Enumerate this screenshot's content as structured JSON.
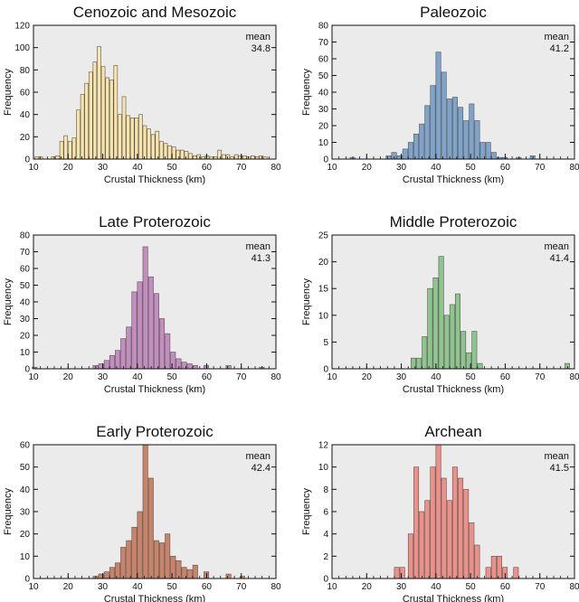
{
  "chart_data": [
    {
      "type": "bar",
      "title": "Cenozoic and Mesozoic",
      "xlabel": "Crustal Thickness (km)",
      "ylabel": "Frequency",
      "xlim": [
        10,
        80
      ],
      "ylim": [
        0,
        120
      ],
      "xticks": [
        10,
        20,
        30,
        40,
        50,
        60,
        70,
        80
      ],
      "yticks": [
        0,
        20,
        40,
        60,
        80,
        100,
        120
      ],
      "bin_width": 1.2,
      "annotation": {
        "label": "mean",
        "value": "34.8"
      },
      "color": "#f8e3a8",
      "x": [
        11,
        12.2,
        13.4,
        14.6,
        15.8,
        17,
        18.2,
        19.4,
        20.6,
        21.8,
        23,
        24.2,
        25.4,
        26.6,
        27.8,
        29,
        30.2,
        31.4,
        32.6,
        33.8,
        35,
        36.2,
        37.4,
        38.6,
        39.8,
        41,
        42.2,
        43.4,
        44.6,
        45.8,
        47,
        48.2,
        49.4,
        50.6,
        51.8,
        53,
        54.2,
        55.4,
        56.6,
        57.8,
        59,
        60.2,
        61.4,
        62.6,
        63.8,
        65,
        66.2,
        67.4,
        68.6,
        69.8,
        71,
        72.2,
        73.4,
        74.6,
        75.8,
        77,
        78.2
      ],
      "values": [
        2,
        2,
        0,
        0,
        2,
        3,
        16,
        21,
        16,
        19,
        44,
        58,
        68,
        78,
        87,
        101,
        83,
        73,
        71,
        84,
        40,
        56,
        39,
        37,
        37,
        40,
        30,
        27,
        22,
        25,
        16,
        14,
        12,
        11,
        8,
        8,
        7,
        5,
        3,
        4,
        2,
        3,
        2,
        2,
        8,
        4,
        4,
        2,
        4,
        3,
        3,
        2,
        3,
        2,
        3,
        2,
        0
      ]
    },
    {
      "type": "bar",
      "title": "Paleozoic",
      "xlabel": "Crustal Thickness (km)",
      "ylabel": "Frequency",
      "xlim": [
        10,
        80
      ],
      "ylim": [
        0,
        80
      ],
      "xticks": [
        10,
        20,
        30,
        40,
        50,
        60,
        70,
        80
      ],
      "yticks": [
        0,
        10,
        20,
        30,
        40,
        50,
        60,
        70,
        80
      ],
      "bin_width": 1.6,
      "annotation": {
        "label": "mean",
        "value": "41.2"
      },
      "color": "#7fa4cc",
      "x": [
        16,
        26.4,
        28,
        29.6,
        31.2,
        32.8,
        34.4,
        36,
        37.6,
        39.2,
        40.8,
        42.4,
        44,
        45.6,
        47.2,
        48.8,
        50.4,
        52,
        53.6,
        55.2,
        56.8,
        58.4,
        60,
        64,
        68
      ],
      "values": [
        1,
        2,
        4,
        2,
        6,
        10,
        15,
        21,
        32,
        44,
        64,
        52,
        36,
        37,
        31,
        23,
        33,
        23,
        10,
        10,
        4,
        1,
        1,
        1,
        2
      ]
    },
    {
      "type": "bar",
      "title": "Late Proterozoic",
      "xlabel": "Crustal Thickness (km)",
      "ylabel": "Frequency",
      "xlim": [
        10,
        80
      ],
      "ylim": [
        0,
        80
      ],
      "xticks": [
        10,
        20,
        30,
        40,
        50,
        60,
        70,
        80
      ],
      "yticks": [
        0,
        10,
        20,
        30,
        40,
        50,
        60,
        70,
        80
      ],
      "bin_width": 1.6,
      "annotation": {
        "label": "mean",
        "value": "41.3"
      },
      "color": "#c48cbf",
      "x": [
        10.4,
        28,
        29.6,
        31.2,
        32.8,
        34.4,
        36,
        37.6,
        39.2,
        40.8,
        42.4,
        44,
        45.6,
        47.2,
        48.8,
        50.4,
        52,
        53.6,
        55.2,
        56.8,
        60,
        66.4,
        76
      ],
      "values": [
        1,
        2,
        3,
        5,
        8,
        11,
        18,
        25,
        46,
        52,
        73,
        55,
        45,
        30,
        21,
        10,
        6,
        4,
        3,
        2,
        2,
        2,
        1
      ]
    },
    {
      "type": "bar",
      "title": "Middle Proterozoic",
      "xlabel": "Crustal Thickness (km)",
      "ylabel": "Frequency",
      "xlim": [
        10,
        80
      ],
      "ylim": [
        0,
        25
      ],
      "xticks": [
        10,
        20,
        30,
        40,
        50,
        60,
        70,
        80
      ],
      "yticks": [
        0,
        5,
        10,
        15,
        20,
        25
      ],
      "bin_width": 1.6,
      "annotation": {
        "label": "mean",
        "value": "41.4"
      },
      "color": "#8ec58c",
      "x": [
        33.6,
        35.2,
        36.8,
        38.4,
        40,
        41.6,
        43.2,
        44.8,
        46.4,
        48,
        49.6,
        51.2,
        52.8,
        78
      ],
      "values": [
        2,
        2,
        6,
        15,
        17,
        21,
        10,
        12,
        14,
        7,
        3,
        7,
        1,
        1
      ]
    },
    {
      "type": "bar",
      "title": "Early Proterozoic",
      "xlabel": "Crustal Thickness (km)",
      "ylabel": "Frequency",
      "xlim": [
        10,
        80
      ],
      "ylim": [
        0,
        60
      ],
      "xticks": [
        10,
        20,
        30,
        40,
        50,
        60,
        70,
        80
      ],
      "yticks": [
        0,
        10,
        20,
        30,
        40,
        50,
        60
      ],
      "bin_width": 1.6,
      "annotation": {
        "label": "mean",
        "value": "42.4"
      },
      "color": "#cc8266",
      "x": [
        28,
        29.6,
        31.2,
        32.8,
        34.4,
        36,
        37.6,
        39.2,
        40.8,
        42.4,
        44,
        45.6,
        47.2,
        48.8,
        50.4,
        52,
        53.6,
        55.2,
        56.8,
        60,
        66.4,
        70.4
      ],
      "values": [
        1,
        2,
        3,
        5,
        7,
        14,
        17,
        23,
        30,
        60,
        45,
        17,
        16,
        20,
        10,
        8,
        5,
        4,
        6,
        3,
        2,
        1
      ]
    },
    {
      "type": "bar",
      "title": "Archean",
      "xlabel": "Crustal Thickness (km)",
      "ylabel": "Frequency",
      "xlim": [
        10,
        80
      ],
      "ylim": [
        0,
        12
      ],
      "xticks": [
        10,
        20,
        30,
        40,
        50,
        60,
        70,
        80
      ],
      "yticks": [
        0,
        2,
        4,
        6,
        8,
        10,
        12
      ],
      "bin_width": 1.6,
      "annotation": {
        "label": "mean",
        "value": "41.5"
      },
      "color": "#ee9088",
      "x": [
        28.8,
        30.4,
        32.8,
        34.4,
        36,
        37.6,
        39.2,
        40.8,
        42.4,
        44,
        45.6,
        47.2,
        48.8,
        50.4,
        52,
        55.2,
        56.8,
        58.4,
        60,
        63.2
      ],
      "values": [
        1,
        1,
        4,
        10,
        6,
        7,
        10,
        12,
        9,
        7,
        10,
        9,
        8,
        5,
        3,
        1,
        2,
        2,
        1,
        1
      ]
    }
  ]
}
